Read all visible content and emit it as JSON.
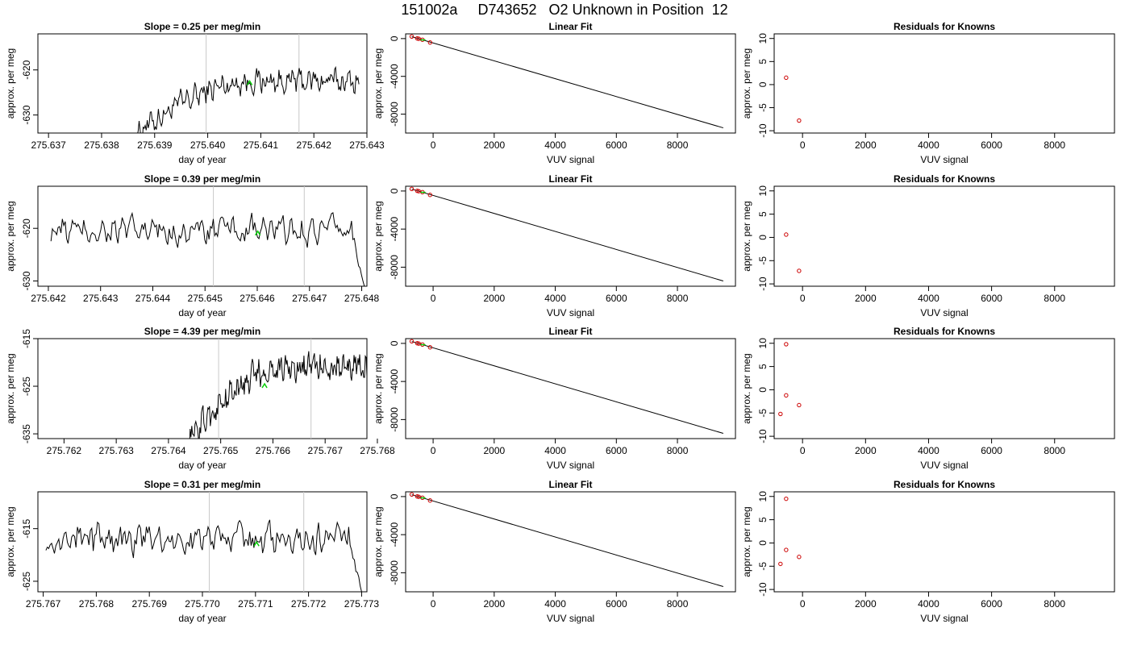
{
  "title": "151002a     D743652   O2 Unknown in Position  12",
  "colors": {
    "line": "#000000",
    "marker_green": "#00cc00",
    "point_red": "#cc0000",
    "vline": "#c8c8c8"
  },
  "chart_data": [
    {
      "type": "line",
      "title": "Slope =  0.25  per meg/min",
      "xlabel": "day of year",
      "ylabel": "approx. per meg",
      "xlim": [
        275.6368,
        275.643
      ],
      "ylim": [
        -634,
        -612
      ],
      "xticks": [
        "275.637",
        "275.638",
        "275.639",
        "275.640",
        "275.641",
        "275.642",
        "275.643"
      ],
      "yticks": [
        "-620",
        "-630"
      ],
      "x_start": 275.63865,
      "x_end": 275.64285,
      "y_start": -634,
      "y_end": -622.5,
      "transition_frac": 0.35,
      "noise_amp": 2.2,
      "vlines": [
        275.63997,
        275.64172
      ],
      "marker": {
        "x": 275.64079,
        "y": -623
      }
    },
    {
      "type": "scatter",
      "title": "Linear Fit",
      "xlabel": "VUV signal",
      "ylabel": "approx. per meg",
      "xlim": [
        -900,
        9900
      ],
      "ylim": [
        -10000,
        500
      ],
      "xticks": [
        "0",
        "2000",
        "4000",
        "6000",
        "8000"
      ],
      "yticks": [
        "0",
        "-4000",
        "-8000"
      ],
      "fit_line": [
        [
          -700,
          200
        ],
        [
          9500,
          -9450
        ]
      ],
      "red_points": [
        [
          -700,
          220
        ],
        [
          -520,
          20
        ],
        [
          -470,
          -20
        ],
        [
          -350,
          -120
        ],
        [
          -100,
          -410
        ]
      ],
      "green_points": [
        [
          -330,
          -140
        ]
      ]
    },
    {
      "type": "scatter",
      "title": "Residuals for Knowns",
      "xlabel": "VUV signal",
      "ylabel": "approx. per meg",
      "xlim": [
        -900,
        9900
      ],
      "ylim": [
        -10.5,
        11
      ],
      "xticks": [
        "0",
        "2000",
        "4000",
        "6000",
        "8000"
      ],
      "yticks": [
        "10",
        "5",
        "0",
        "-5",
        "-10"
      ],
      "red_points": [
        [
          -520,
          1.5
        ],
        [
          -110,
          -7.8
        ]
      ]
    },
    {
      "type": "line",
      "title": "Slope =  0.39  per meg/min",
      "xlabel": "day of year",
      "ylabel": "approx. per meg",
      "xlim": [
        275.6418,
        275.6481
      ],
      "ylim": [
        -631,
        -612
      ],
      "xticks": [
        "275.642",
        "275.643",
        "275.644",
        "275.645",
        "275.646",
        "275.647",
        "275.648"
      ],
      "yticks": [
        "-620",
        "-630"
      ],
      "x_start": 275.64205,
      "x_end": 275.64805,
      "y_start": -621,
      "y_end": -620.5,
      "transition_frac": 0.0,
      "noise_amp": 2.0,
      "end_drop": -631,
      "vlines": [
        275.64516,
        275.6469
      ],
      "marker": {
        "x": 275.64601,
        "y": -621
      }
    },
    {
      "type": "scatter",
      "title": "Linear Fit",
      "xlabel": "VUV signal",
      "ylabel": "approx. per meg",
      "xlim": [
        -900,
        9900
      ],
      "ylim": [
        -10000,
        500
      ],
      "xticks": [
        "0",
        "2000",
        "4000",
        "6000",
        "8000"
      ],
      "yticks": [
        "0",
        "-4000",
        "-8000"
      ],
      "fit_line": [
        [
          -700,
          200
        ],
        [
          9500,
          -9450
        ]
      ],
      "red_points": [
        [
          -700,
          220
        ],
        [
          -520,
          20
        ],
        [
          -470,
          -20
        ],
        [
          -350,
          -120
        ],
        [
          -100,
          -410
        ]
      ],
      "green_points": [
        [
          -330,
          -140
        ]
      ]
    },
    {
      "type": "scatter",
      "title": "Residuals for Knowns",
      "xlabel": "VUV signal",
      "ylabel": "approx. per meg",
      "xlim": [
        -900,
        9900
      ],
      "ylim": [
        -10.5,
        11
      ],
      "xticks": [
        "0",
        "2000",
        "4000",
        "6000",
        "8000"
      ],
      "yticks": [
        "10",
        "5",
        "0",
        "-5",
        "-10"
      ],
      "red_points": [
        [
          -520,
          0.6
        ],
        [
          -110,
          -7.2
        ]
      ]
    },
    {
      "type": "line",
      "title": "Slope =  4.39  per meg/min",
      "xlabel": "day of year",
      "ylabel": "approx. per meg",
      "xlim": [
        275.7615,
        275.7678
      ],
      "ylim": [
        -636,
        -615
      ],
      "xticks": [
        "275.762",
        "275.763",
        "275.764",
        "275.765",
        "275.766",
        "275.767",
        "275.768"
      ],
      "yticks": [
        "-615",
        "-625",
        "-635"
      ],
      "x_start": 275.7644,
      "x_end": 275.7678,
      "y_start": -636,
      "y_end": -621,
      "transition_frac": 0.45,
      "noise_amp": 2.4,
      "vlines": [
        275.76496,
        275.76673
      ],
      "marker": {
        "x": 275.76584,
        "y": -625
      }
    },
    {
      "type": "scatter",
      "title": "Linear Fit",
      "xlabel": "VUV signal",
      "ylabel": "approx. per meg",
      "xlim": [
        -900,
        9900
      ],
      "ylim": [
        -10000,
        500
      ],
      "xticks": [
        "0",
        "2000",
        "4000",
        "6000",
        "8000"
      ],
      "yticks": [
        "0",
        "-4000",
        "-8000"
      ],
      "fit_line": [
        [
          -700,
          200
        ],
        [
          9500,
          -9450
        ]
      ],
      "red_points": [
        [
          -700,
          220
        ],
        [
          -520,
          20
        ],
        [
          -470,
          -20
        ],
        [
          -350,
          -120
        ],
        [
          -100,
          -410
        ]
      ],
      "green_points": [
        [
          -330,
          -140
        ]
      ]
    },
    {
      "type": "scatter",
      "title": "Residuals for Knowns",
      "xlabel": "VUV signal",
      "ylabel": "approx. per meg",
      "xlim": [
        -900,
        9900
      ],
      "ylim": [
        -10.5,
        11
      ],
      "xticks": [
        "0",
        "2000",
        "4000",
        "6000",
        "8000"
      ],
      "yticks": [
        "10",
        "5",
        "0",
        "-5",
        "-10"
      ],
      "red_points": [
        [
          -520,
          9.8
        ],
        [
          -700,
          -5.2
        ],
        [
          -520,
          -1.2
        ],
        [
          -110,
          -3.3
        ]
      ]
    },
    {
      "type": "line",
      "title": "Slope =  0.31  per meg/min",
      "xlabel": "day of year",
      "ylabel": "approx. per meg",
      "xlim": [
        275.7669,
        275.7731
      ],
      "ylim": [
        -627,
        -608
      ],
      "xticks": [
        "275.767",
        "275.768",
        "275.769",
        "275.770",
        "275.771",
        "275.772",
        "275.773"
      ],
      "yticks": [
        "-615",
        "-625"
      ],
      "x_start": 275.76705,
      "x_end": 275.773,
      "y_start": -619,
      "y_end": -617,
      "transition_frac": 0.0,
      "noise_amp": 2.2,
      "end_drop": -627,
      "vlines": [
        275.77013,
        275.77191
      ],
      "marker": {
        "x": 275.77102,
        "y": -618
      }
    },
    {
      "type": "scatter",
      "title": "Linear Fit",
      "xlabel": "VUV signal",
      "ylabel": "approx. per meg",
      "xlim": [
        -900,
        9900
      ],
      "ylim": [
        -10000,
        500
      ],
      "xticks": [
        "0",
        "2000",
        "4000",
        "6000",
        "8000"
      ],
      "yticks": [
        "0",
        "-4000",
        "-8000"
      ],
      "fit_line": [
        [
          -700,
          200
        ],
        [
          9500,
          -9450
        ]
      ],
      "red_points": [
        [
          -700,
          220
        ],
        [
          -520,
          20
        ],
        [
          -470,
          -20
        ],
        [
          -350,
          -120
        ],
        [
          -100,
          -410
        ]
      ],
      "green_points": [
        [
          -330,
          -140
        ]
      ]
    },
    {
      "type": "scatter",
      "title": "Residuals for Knowns",
      "xlabel": "VUV signal",
      "ylabel": "approx. per meg",
      "xlim": [
        -900,
        9900
      ],
      "ylim": [
        -10.5,
        11
      ],
      "xticks": [
        "0",
        "2000",
        "4000",
        "6000",
        "8000"
      ],
      "yticks": [
        "10",
        "5",
        "0",
        "-5",
        "-10"
      ],
      "red_points": [
        [
          -520,
          9.5
        ],
        [
          -700,
          -4.5
        ],
        [
          -520,
          -1.5
        ],
        [
          -110,
          -3.0
        ]
      ]
    }
  ]
}
